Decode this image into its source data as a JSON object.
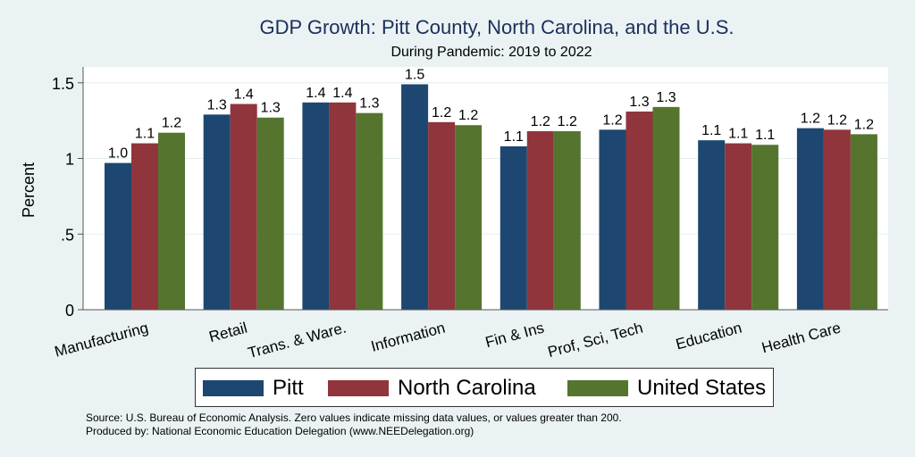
{
  "chart_data": {
    "type": "bar",
    "title": "GDP Growth: Pitt County, North Carolina, and the U.S.",
    "subtitle": "During Pandemic: 2019 to 2022",
    "xlabel": "",
    "ylabel": "Percent",
    "ylim": [
      0,
      1.6
    ],
    "yticks": [
      0,
      0.5,
      1,
      1.5
    ],
    "ytick_labels": [
      "0",
      ".5",
      "1",
      "1.5"
    ],
    "grid": true,
    "categories": [
      "Manufacturing",
      "Retail",
      "Trans. & Ware.",
      "Information",
      "Fin & Ins",
      "Prof, Sci, Tech",
      "Education",
      "Health Care"
    ],
    "series": [
      {
        "name": "Pitt",
        "color": "#1d4770",
        "values": [
          0.97,
          1.29,
          1.37,
          1.49,
          1.08,
          1.19,
          1.12,
          1.2
        ],
        "labels": [
          "1.0",
          "1.3",
          "1.4",
          "1.5",
          "1.1",
          "1.2",
          "1.1",
          "1.2"
        ]
      },
      {
        "name": "North Carolina",
        "color": "#90353c",
        "values": [
          1.1,
          1.36,
          1.37,
          1.24,
          1.18,
          1.31,
          1.1,
          1.19
        ],
        "labels": [
          "1.1",
          "1.4",
          "1.4",
          "1.2",
          "1.2",
          "1.3",
          "1.1",
          "1.2"
        ]
      },
      {
        "name": "United States",
        "color": "#55752f",
        "values": [
          1.17,
          1.27,
          1.3,
          1.22,
          1.18,
          1.34,
          1.09,
          1.16
        ],
        "labels": [
          "1.2",
          "1.3",
          "1.3",
          "1.2",
          "1.2",
          "1.3",
          "1.1",
          "1.2"
        ]
      }
    ],
    "legend_position": "bottom"
  },
  "notes": {
    "source": "Source: U.S. Bureau of Economic Analysis. Zero values indicate missing data values, or values greater than 200.",
    "produced": "Produced by: National Economic Education Delegation (www.NEEDelegation.org)"
  }
}
